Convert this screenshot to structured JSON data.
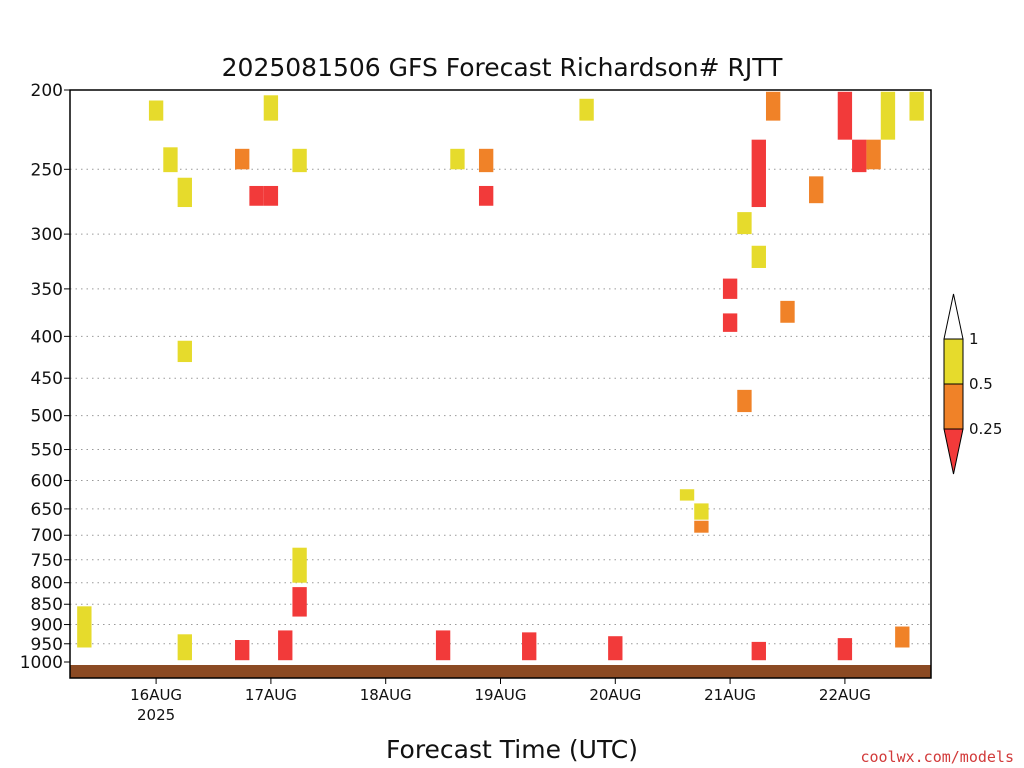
{
  "chart_data": {
    "type": "heatmap",
    "title": "2025081506 GFS Forecast Richardson# RJTT",
    "xlabel": "Forecast Time (UTC)",
    "ylabel": "",
    "credit": "coolwx.com/models",
    "y_scale": "log (pressure, inverted)",
    "ylim": [
      1000,
      200
    ],
    "xlim": [
      "2025-08-15T06",
      "2025-08-22T18"
    ],
    "y_ticks": [
      200,
      250,
      300,
      350,
      400,
      450,
      500,
      550,
      600,
      650,
      700,
      750,
      800,
      850,
      900,
      950,
      1000
    ],
    "x_ticks": [
      {
        "label": "16AUG",
        "sub": "2025",
        "time": "2025-08-16T00"
      },
      {
        "label": "17AUG",
        "sub": "",
        "time": "2025-08-17T00"
      },
      {
        "label": "18AUG",
        "sub": "",
        "time": "2025-08-18T00"
      },
      {
        "label": "19AUG",
        "sub": "",
        "time": "2025-08-19T00"
      },
      {
        "label": "20AUG",
        "sub": "",
        "time": "2025-08-20T00"
      },
      {
        "label": "21AUG",
        "sub": "",
        "time": "2025-08-21T00"
      },
      {
        "label": "22AUG",
        "sub": "",
        "time": "2025-08-22T00"
      }
    ],
    "grid": "dotted horizontal",
    "legend": {
      "placement": "right",
      "bins": [
        {
          "label": "1",
          "color": "#ffffff"
        },
        {
          "label": "0.5",
          "color": "#e6db2c"
        },
        {
          "label": "0.25",
          "color": "#f08228"
        },
        {
          "label": "",
          "color": "#f23a3a"
        }
      ]
    },
    "colors": {
      "ri_lt_025": "#f23a3a",
      "ri_025_05": "#f08228",
      "ri_05_1": "#e6db2c",
      "ground": "#8b4a23"
    },
    "cells": [
      {
        "t": "2025-08-16T00",
        "p_top": 206,
        "p_bot": 218,
        "bin": "0.5-1"
      },
      {
        "t": "2025-08-16T03",
        "p_top": 235,
        "p_bot": 252,
        "bin": "0.5-1"
      },
      {
        "t": "2025-08-16T06",
        "p_top": 256,
        "p_bot": 278,
        "bin": "0.5-1"
      },
      {
        "t": "2025-08-16T06",
        "p_top": 405,
        "p_bot": 430,
        "bin": "0.5-1"
      },
      {
        "t": "2025-08-16T18",
        "p_top": 236,
        "p_bot": 250,
        "bin": "0.25-0.5"
      },
      {
        "t": "2025-08-16T21",
        "p_top": 262,
        "p_bot": 277,
        "bin": "<0.25"
      },
      {
        "t": "2025-08-17T00",
        "p_top": 262,
        "p_bot": 277,
        "bin": "<0.25"
      },
      {
        "t": "2025-08-17T00",
        "p_top": 203,
        "p_bot": 218,
        "bin": "0.5-1"
      },
      {
        "t": "2025-08-17T06",
        "p_top": 236,
        "p_bot": 252,
        "bin": "0.5-1"
      },
      {
        "t": "2025-08-18T15",
        "p_top": 236,
        "p_bot": 250,
        "bin": "0.5-1"
      },
      {
        "t": "2025-08-18T21",
        "p_top": 236,
        "p_bot": 252,
        "bin": "0.25-0.5"
      },
      {
        "t": "2025-08-18T21",
        "p_top": 262,
        "p_bot": 277,
        "bin": "<0.25"
      },
      {
        "t": "2025-08-19T18",
        "p_top": 205,
        "p_bot": 218,
        "bin": "0.5-1"
      },
      {
        "t": "2025-08-21T00",
        "p_top": 340,
        "p_bot": 360,
        "bin": "<0.25"
      },
      {
        "t": "2025-08-21T00",
        "p_top": 375,
        "p_bot": 395,
        "bin": "<0.25"
      },
      {
        "t": "2025-08-21T03",
        "p_top": 282,
        "p_bot": 300,
        "bin": "0.5-1"
      },
      {
        "t": "2025-08-21T06",
        "p_top": 310,
        "p_bot": 330,
        "bin": "0.5-1"
      },
      {
        "t": "2025-08-21T06",
        "p_top": 230,
        "p_bot": 278,
        "bin": "<0.25"
      },
      {
        "t": "2025-08-21T09",
        "p_top": 201,
        "p_bot": 218,
        "bin": "0.25-0.5"
      },
      {
        "t": "2025-08-21T12",
        "p_top": 362,
        "p_bot": 385,
        "bin": "0.25-0.5"
      },
      {
        "t": "2025-08-21T18",
        "p_top": 255,
        "p_bot": 275,
        "bin": "0.25-0.5"
      },
      {
        "t": "2025-08-22T00",
        "p_top": 201,
        "p_bot": 230,
        "bin": "<0.25"
      },
      {
        "t": "2025-08-22T03",
        "p_top": 230,
        "p_bot": 252,
        "bin": "<0.25"
      },
      {
        "t": "2025-08-22T06",
        "p_top": 230,
        "p_bot": 250,
        "bin": "0.25-0.5"
      },
      {
        "t": "2025-08-22T09",
        "p_top": 201,
        "p_bot": 230,
        "bin": "0.5-1"
      },
      {
        "t": "2025-08-22T15",
        "p_top": 201,
        "p_bot": 218,
        "bin": "0.5-1"
      },
      {
        "t": "2025-08-20T15",
        "p_top": 615,
        "p_bot": 635,
        "bin": "0.5-1"
      },
      {
        "t": "2025-08-20T18",
        "p_top": 640,
        "p_bot": 670,
        "bin": "0.5-1"
      },
      {
        "t": "2025-08-20T18",
        "p_top": 672,
        "p_bot": 695,
        "bin": "0.25-0.5"
      },
      {
        "t": "2025-08-21T03",
        "p_top": 465,
        "p_bot": 495,
        "bin": "0.25-0.5"
      },
      {
        "t": "2025-08-17T06",
        "p_top": 725,
        "p_bot": 800,
        "bin": "0.5-1"
      },
      {
        "t": "2025-08-17T06",
        "p_top": 810,
        "p_bot": 880,
        "bin": "<0.25"
      },
      {
        "t": "2025-08-16T18",
        "p_top": 940,
        "p_bot": 995,
        "bin": "<0.25"
      },
      {
        "t": "2025-08-17T03",
        "p_top": 915,
        "p_bot": 995,
        "bin": "<0.25"
      },
      {
        "t": "2025-08-18T12",
        "p_top": 915,
        "p_bot": 995,
        "bin": "<0.25"
      },
      {
        "t": "2025-08-19T06",
        "p_top": 920,
        "p_bot": 995,
        "bin": "<0.25"
      },
      {
        "t": "2025-08-20T00",
        "p_top": 930,
        "p_bot": 995,
        "bin": "<0.25"
      },
      {
        "t": "2025-08-21T06",
        "p_top": 945,
        "p_bot": 995,
        "bin": "<0.25"
      },
      {
        "t": "2025-08-22T00",
        "p_top": 935,
        "p_bot": 995,
        "bin": "<0.25"
      },
      {
        "t": "2025-08-22T12",
        "p_top": 905,
        "p_bot": 960,
        "bin": "0.25-0.5"
      },
      {
        "t": "2025-08-15T09",
        "p_top": 855,
        "p_bot": 960,
        "bin": "0.5-1"
      },
      {
        "t": "2025-08-16T06",
        "p_top": 925,
        "p_bot": 995,
        "bin": "0.5-1"
      }
    ]
  }
}
